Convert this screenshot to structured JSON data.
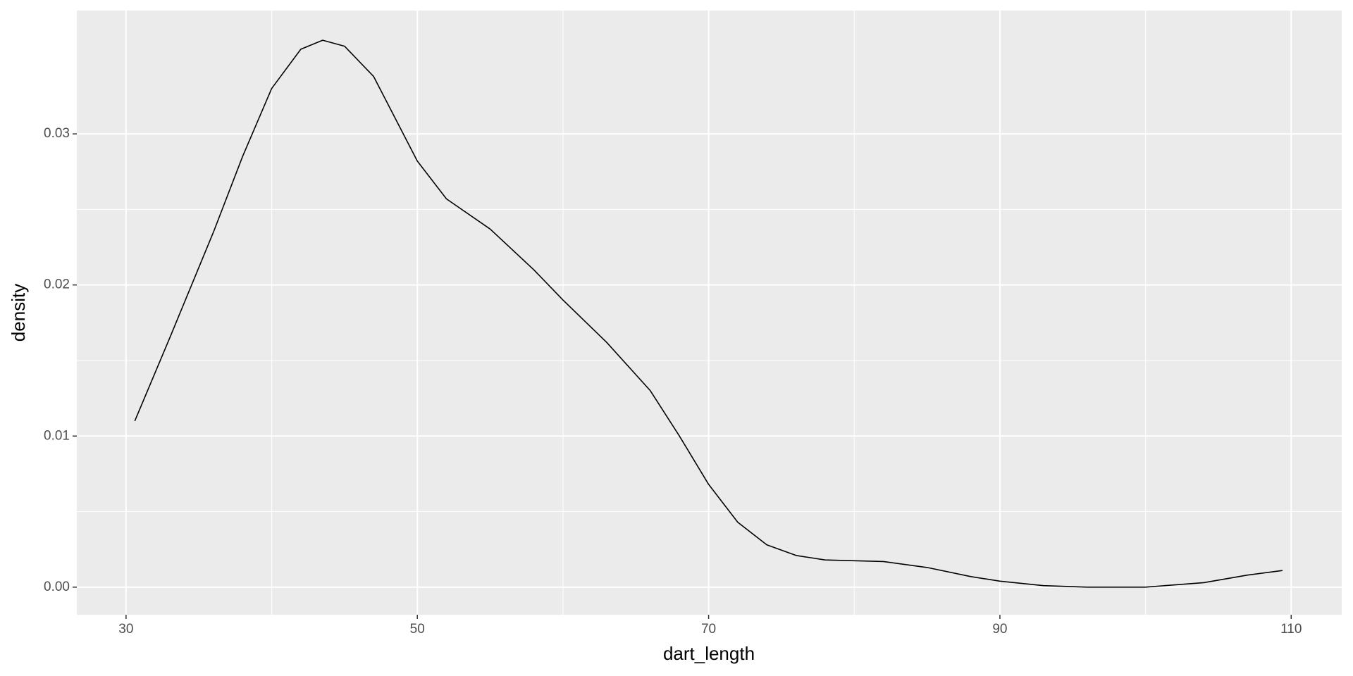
{
  "chart_data": {
    "type": "line",
    "x_label": "dart_length",
    "y_label": "density",
    "x": [
      30.6,
      33,
      36,
      38,
      40,
      42,
      43.5,
      45,
      47,
      50,
      52,
      55,
      58,
      60,
      63,
      66,
      68,
      70,
      72,
      74,
      76,
      78,
      82,
      85,
      88,
      90,
      93,
      96,
      100,
      104,
      107,
      109.4
    ],
    "series": [
      {
        "name": "density",
        "color": "#000000",
        "values": [
          0.011,
          0.0165,
          0.0235,
          0.0285,
          0.033,
          0.0356,
          0.0362,
          0.0358,
          0.0338,
          0.0282,
          0.0257,
          0.0237,
          0.021,
          0.019,
          0.0162,
          0.013,
          0.01,
          0.0068,
          0.0043,
          0.0028,
          0.0021,
          0.0018,
          0.0017,
          0.0013,
          0.0007,
          0.0004,
          0.0001,
          0,
          0,
          0.0003,
          0.0008,
          0.0011
        ]
      }
    ],
    "xlim": [
      26.62,
      113.47
    ],
    "ylim": [
      -0.001825,
      0.03816
    ],
    "xticks": [
      30,
      50,
      70,
      90,
      110
    ],
    "yticks": [
      {
        "value": 0,
        "label": "0.00"
      },
      {
        "value": 0.01,
        "label": "0.01"
      },
      {
        "value": 0.02,
        "label": "0.02"
      },
      {
        "value": 0.03,
        "label": "0.03"
      }
    ],
    "grid": true,
    "panel_color": "#ebebeb"
  }
}
